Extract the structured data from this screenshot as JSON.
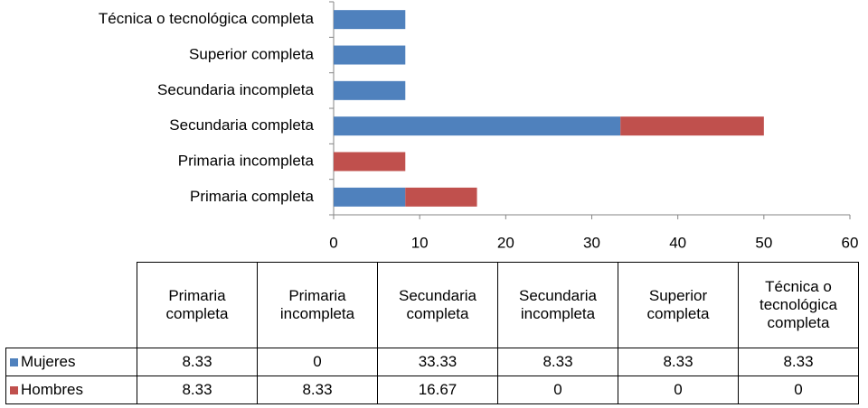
{
  "chart_data": {
    "type": "stacked-barh",
    "categories": [
      "Primaria completa",
      "Primaria incompleta",
      "Secundaria completa",
      "Secundaria incompleta",
      "Superior completa",
      "Técnica o tecnológica completa"
    ],
    "series": [
      {
        "name": "Mujeres",
        "color": "#4f81bd",
        "values": [
          8.33,
          0,
          33.33,
          8.33,
          8.33,
          8.33
        ]
      },
      {
        "name": "Hombres",
        "color": "#c0504d",
        "values": [
          8.33,
          8.33,
          16.67,
          0,
          0,
          0
        ]
      }
    ],
    "xlim": [
      0,
      60
    ],
    "xticks": [
      0,
      10,
      20,
      30,
      40,
      50,
      60
    ],
    "data_table": true
  }
}
